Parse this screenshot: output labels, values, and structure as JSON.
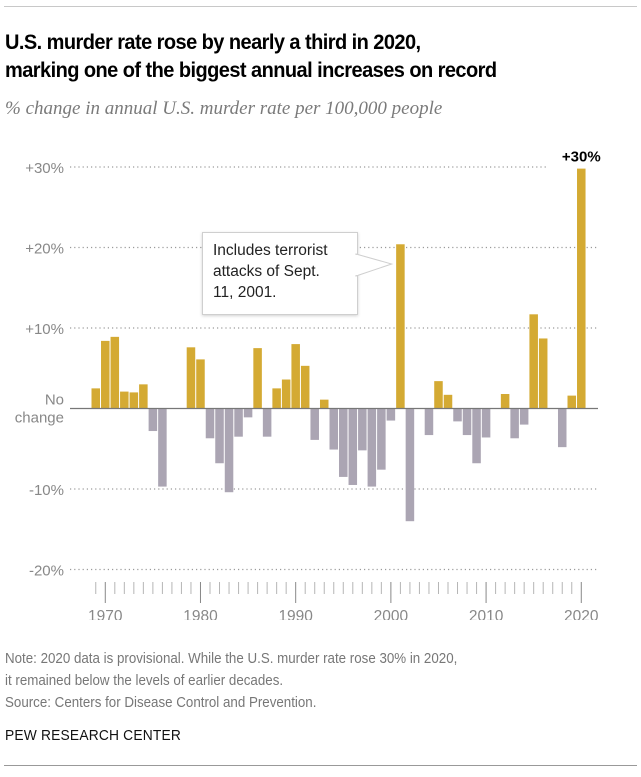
{
  "header": {
    "title_line1": "U.S. murder rate rose by nearly a third in 2020,",
    "title_line2": "marking one of the biggest annual increases on record",
    "subtitle": "% change in annual U.S. murder rate per 100,000 people"
  },
  "annotation": {
    "line1": "Includes terrorist",
    "line2": "attacks of Sept.",
    "line3": "11, 2001.",
    "target_year": 2001
  },
  "footer": {
    "note_line1": "Note: 2020 data is provisional. While the U.S. murder rate rose 30% in 2020,",
    "note_line2": "it remained below the levels of earlier decades.",
    "source": "Source: Centers for Disease Control and Prevention.",
    "brand": "PEW RESEARCH CENTER"
  },
  "colors": {
    "increase": "#D4AA33",
    "decrease": "#ABA5B3",
    "grid": "#9a9a9a",
    "baseline": "#777777",
    "axis_text": "#888888"
  },
  "chart_data": {
    "type": "bar",
    "title": "U.S. murder rate rose by nearly a third in 2020, marking one of the biggest annual increases on record",
    "subtitle": "% change in annual U.S. murder rate per 100,000 people",
    "xlabel": "",
    "ylabel": "",
    "ylim": [
      -20,
      30
    ],
    "grid": true,
    "yticks": [
      {
        "value": 30,
        "label": "+30%"
      },
      {
        "value": 20,
        "label": "+20%"
      },
      {
        "value": 10,
        "label": "+10%"
      },
      {
        "value": 0,
        "label_line1": "No",
        "label_line2": "change"
      },
      {
        "value": -10,
        "label": "-10%"
      },
      {
        "value": -20,
        "label": "-20%"
      }
    ],
    "xticks": [
      {
        "value": 1970,
        "label": "1970"
      },
      {
        "value": 1980,
        "label": "1980"
      },
      {
        "value": 1990,
        "label": "1990"
      },
      {
        "value": 2000,
        "label": "2000"
      },
      {
        "value": 2010,
        "label": "2010"
      },
      {
        "value": 2020,
        "label": "2020"
      }
    ],
    "x_range": [
      1969,
      2020
    ],
    "data_labels": [
      {
        "year": 2020,
        "label": "+30%"
      }
    ],
    "categories": [
      1969,
      1970,
      1971,
      1972,
      1973,
      1974,
      1975,
      1976,
      1977,
      1978,
      1979,
      1980,
      1981,
      1982,
      1983,
      1984,
      1985,
      1986,
      1987,
      1988,
      1989,
      1990,
      1991,
      1992,
      1993,
      1994,
      1995,
      1996,
      1997,
      1998,
      1999,
      2000,
      2001,
      2002,
      2003,
      2004,
      2005,
      2006,
      2007,
      2008,
      2009,
      2010,
      2011,
      2012,
      2013,
      2014,
      2015,
      2016,
      2017,
      2018,
      2019,
      2020
    ],
    "values": [
      2.5,
      8.4,
      8.9,
      2.1,
      2.0,
      3.0,
      -2.8,
      -9.7,
      0,
      0,
      7.6,
      6.1,
      -3.7,
      -6.8,
      -10.4,
      -3.5,
      -1.1,
      7.5,
      -3.5,
      2.5,
      3.6,
      8.0,
      5.3,
      -3.9,
      1.1,
      -5.1,
      -8.5,
      -9.5,
      -5.2,
      -9.7,
      -7.6,
      -1.5,
      20.4,
      -14.0,
      0,
      -3.3,
      3.4,
      1.7,
      -1.6,
      -3.3,
      -6.8,
      -3.6,
      0,
      1.8,
      -3.7,
      -2.0,
      11.7,
      8.7,
      0,
      -4.8,
      1.6,
      29.8
    ]
  }
}
